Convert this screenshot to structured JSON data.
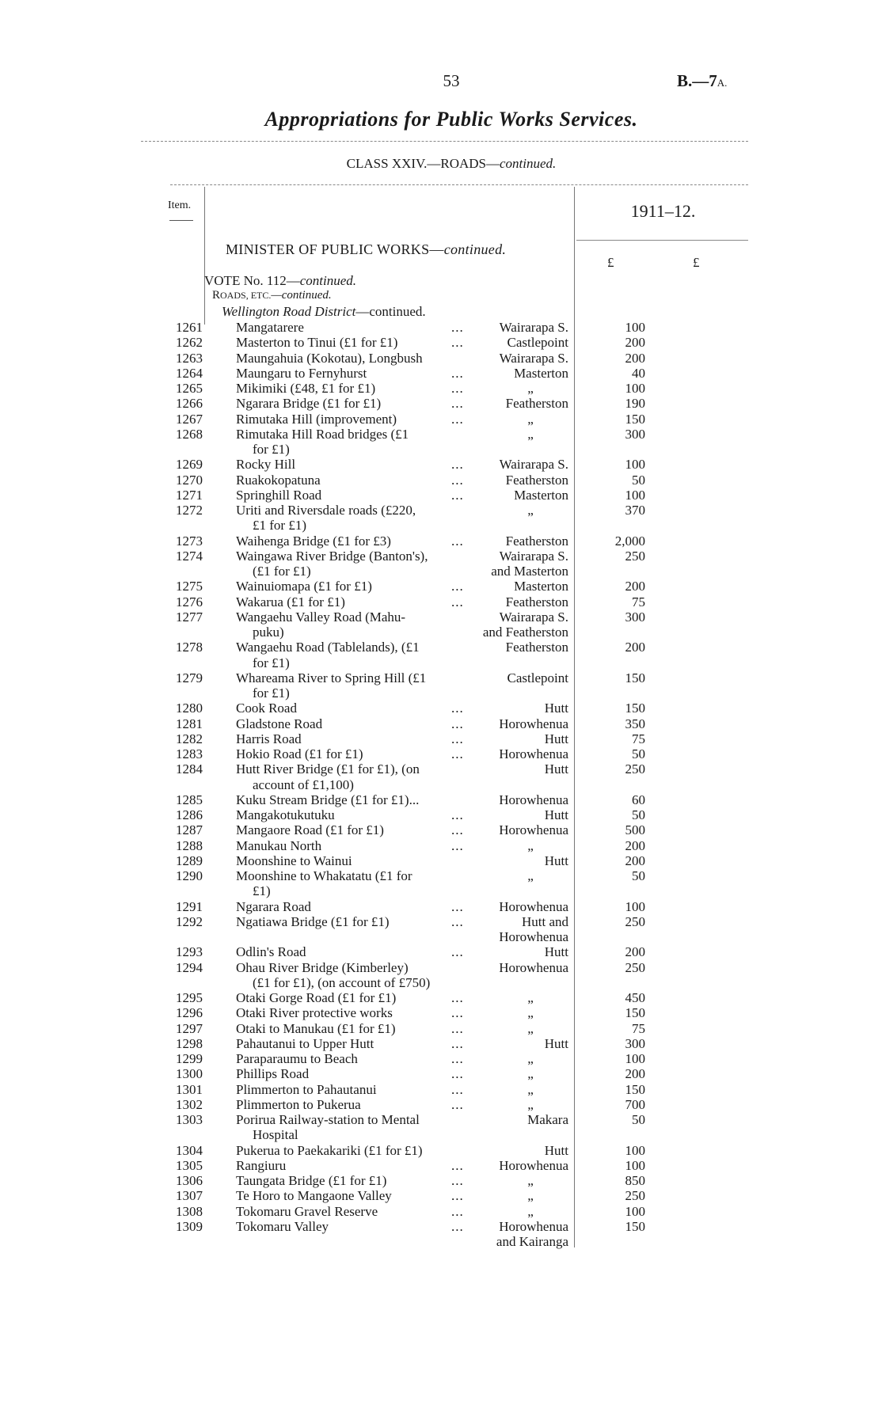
{
  "header": {
    "page_number": "53",
    "doc_ref": "B.—7",
    "doc_ref_suffix": "A.",
    "title": "Appropriations for Public Works Services.",
    "class_heading": "CLASS XXIV.—ROADS—",
    "class_heading_cont": "continued."
  },
  "table_head": {
    "item_label": "Item.",
    "year": "1911–12.",
    "currency_1": "£",
    "currency_2": "£"
  },
  "section": {
    "minister": "MINISTER OF PUBLIC WORKS—",
    "minister_cont": "continued.",
    "vote": "VOTE No. 112—",
    "vote_cont": "continued.",
    "roads_r": "R",
    "roads_sc": "OADS, ETC.",
    "roads_cont": "—continued.",
    "district": "Wellington Road District",
    "district_cont": "—continued."
  },
  "ditto": "„",
  "items": [
    {
      "no": "1261",
      "desc": "Mangatarere",
      "leader": "...",
      "district": "Wairarapa S.",
      "amount": "100"
    },
    {
      "no": "1262",
      "desc": "Masterton to Tinui (£1 for £1)",
      "leader": "...",
      "district": "Castlepoint",
      "amount": "200"
    },
    {
      "no": "1263",
      "desc": "Maungahuia (Kokotau), Longbush",
      "district": "Wairarapa S.",
      "amount": "200"
    },
    {
      "no": "1264",
      "desc": "Maungaru to Fernyhurst",
      "leader": "...",
      "district": "Masterton",
      "amount": "40"
    },
    {
      "no": "1265",
      "desc": "Mikimiki (£48, £1 for £1)",
      "leader": "...",
      "district": "„",
      "amount": "100"
    },
    {
      "no": "1266",
      "desc": "Ngarara Bridge (£1 for £1)",
      "leader": "...",
      "district": "Featherston",
      "amount": "190"
    },
    {
      "no": "1267",
      "desc": "Rimutaka Hill (improvement)",
      "leader": "...",
      "district": "„",
      "amount": "150"
    },
    {
      "no": "1268",
      "desc": "Rimutaka Hill Road bridges (£1",
      "desc_cont": "for £1)",
      "district": "„",
      "amount": "300"
    },
    {
      "no": "1269",
      "desc": "Rocky Hill",
      "leader": "...",
      "district": "Wairarapa S.",
      "amount": "100"
    },
    {
      "no": "1270",
      "desc": "Ruakokopatuna",
      "leader": "...",
      "district": "Featherston",
      "amount": "50"
    },
    {
      "no": "1271",
      "desc": "Springhill Road",
      "leader": "...",
      "district": "Masterton",
      "amount": "100"
    },
    {
      "no": "1272",
      "desc": "Uriti and Riversdale roads (£220,",
      "desc_cont": "£1 for £1)",
      "district": "„",
      "amount": "370"
    },
    {
      "no": "1273",
      "desc": "Waihenga Bridge (£1 for £3)",
      "leader": "...",
      "district": "Featherston",
      "amount": "2,000"
    },
    {
      "no": "1274",
      "desc": "Waingawa River Bridge (Banton's),",
      "desc_cont": "(£1 for £1)",
      "district": "Wairarapa S.",
      "district_cont": "and Masterton",
      "amount": "250"
    },
    {
      "no": "1275",
      "desc": "Wainuiomapa (£1 for £1)",
      "leader": "...",
      "district": "Masterton",
      "amount": "200"
    },
    {
      "no": "1276",
      "desc": "Wakarua (£1 for £1)",
      "leader": "...",
      "district": "Featherston",
      "amount": "75"
    },
    {
      "no": "1277",
      "desc": "Wangaehu Valley Road (Mahu-",
      "desc_cont": "puku)",
      "district": "Wairarapa S.",
      "district_cont": "and Featherston",
      "amount": "300"
    },
    {
      "no": "1278",
      "desc": "Wangaehu Road (Tablelands), (£1",
      "desc_cont": "for £1)",
      "district": "Featherston",
      "amount": "200"
    },
    {
      "no": "1279",
      "desc": "Whareama River to Spring Hill (£1",
      "desc_cont": "for £1)",
      "district": "Castlepoint",
      "amount": "150"
    },
    {
      "no": "1280",
      "desc": "Cook Road",
      "leader": "...",
      "district": "Hutt",
      "amount": "150"
    },
    {
      "no": "1281",
      "desc": "Gladstone Road",
      "leader": "...",
      "district": "Horowhenua",
      "amount": "350"
    },
    {
      "no": "1282",
      "desc": "Harris Road",
      "leader": "...",
      "district": "Hutt",
      "amount": "75"
    },
    {
      "no": "1283",
      "desc": "Hokio Road (£1 for £1)",
      "leader": "...",
      "district": "Horowhenua",
      "amount": "50"
    },
    {
      "no": "1284",
      "desc": "Hutt River Bridge (£1 for £1), (on",
      "desc_cont": "account of £1,100)",
      "district": "Hutt",
      "amount": "250"
    },
    {
      "no": "1285",
      "desc": "Kuku Stream Bridge (£1 for £1)...",
      "district": "Horowhenua",
      "amount": "60"
    },
    {
      "no": "1286",
      "desc": "Mangakotukutuku",
      "leader": "...",
      "district": "Hutt",
      "amount": "50"
    },
    {
      "no": "1287",
      "desc": "Mangaore Road (£1 for £1)",
      "leader": "...",
      "district": "Horowhenua",
      "amount": "500"
    },
    {
      "no": "1288",
      "desc": "Manukau North",
      "leader": "...",
      "district": "„",
      "amount": "200"
    },
    {
      "no": "1289",
      "desc": "Moonshine to Wainui",
      "district": "Hutt",
      "amount": "200"
    },
    {
      "no": "1290",
      "desc": "Moonshine to Whakatatu (£1 for",
      "desc_cont": "£1)",
      "district": "„",
      "amount": "50"
    },
    {
      "no": "1291",
      "desc": "Ngarara Road",
      "leader": "...",
      "district": "Horowhenua",
      "amount": "100"
    },
    {
      "no": "1292",
      "desc": "Ngatiawa Bridge (£1 for £1)",
      "leader": "...",
      "district": "Hutt and",
      "district_cont": "Horowhenua",
      "amount": "250"
    },
    {
      "no": "1293",
      "desc": "Odlin's Road",
      "leader": "...",
      "district": "Hutt",
      "amount": "200"
    },
    {
      "no": "1294",
      "desc": "Ohau River Bridge (Kimberley)",
      "desc_cont": "(£1 for £1), (on account of £750)",
      "district": "Horowhenua",
      "amount": "250"
    },
    {
      "no": "1295",
      "desc": "Otaki Gorge Road (£1 for £1)",
      "leader": "...",
      "district": "„",
      "amount": "450"
    },
    {
      "no": "1296",
      "desc": "Otaki River protective works",
      "leader": "...",
      "district": "„",
      "amount": "150"
    },
    {
      "no": "1297",
      "desc": "Otaki to Manukau (£1 for £1)",
      "leader": "...",
      "district": "„",
      "amount": "75"
    },
    {
      "no": "1298",
      "desc": "Pahautanui to Upper Hutt",
      "leader": "...",
      "district": "Hutt",
      "amount": "300"
    },
    {
      "no": "1299",
      "desc": "Paraparaumu to Beach",
      "leader": "...",
      "district": "„",
      "amount": "100"
    },
    {
      "no": "1300",
      "desc": "Phillips Road",
      "leader": "...",
      "district": "„",
      "amount": "200"
    },
    {
      "no": "1301",
      "desc": "Plimmerton to Pahautanui",
      "leader": "...",
      "district": "„",
      "amount": "150"
    },
    {
      "no": "1302",
      "desc": "Plimmerton to Pukerua",
      "leader": "...",
      "district": "„",
      "amount": "700"
    },
    {
      "no": "1303",
      "desc": "Porirua Railway-station to Mental",
      "desc_cont": "Hospital",
      "district": "Makara",
      "amount": "50"
    },
    {
      "no": "1304",
      "desc": "Pukerua to Paekakariki (£1 for £1)",
      "district": "Hutt",
      "amount": "100"
    },
    {
      "no": "1305",
      "desc": "Rangiuru",
      "leader": "...",
      "district": "Horowhenua",
      "amount": "100"
    },
    {
      "no": "1306",
      "desc": "Taungata Bridge (£1 for £1)",
      "leader": "...",
      "district": "„",
      "amount": "850"
    },
    {
      "no": "1307",
      "desc": "Te Horo to Mangaone Valley",
      "leader": "...",
      "district": "„",
      "amount": "250"
    },
    {
      "no": "1308",
      "desc": "Tokomaru Gravel Reserve",
      "leader": "...",
      "district": "„",
      "amount": "100"
    },
    {
      "no": "1309",
      "desc": "Tokomaru Valley",
      "leader": "...",
      "district": "Horowhenua",
      "district_cont": "and Kairanga",
      "amount": "150"
    }
  ]
}
